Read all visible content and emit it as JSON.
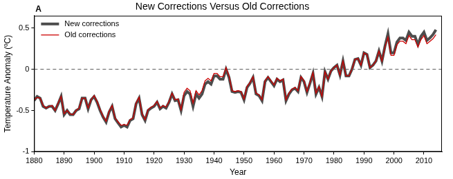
{
  "chart_data": {
    "type": "line",
    "title": "New Corrections Versus Old Corrections",
    "panel_label": "A",
    "x_label": "Year",
    "y_label": "Temperature Anomaly (ºC)",
    "xlim": [
      1880,
      2016
    ],
    "xticks": [
      1880,
      1890,
      1900,
      1910,
      1920,
      1930,
      1940,
      1950,
      1960,
      1970,
      1980,
      1990,
      2000,
      2010
    ],
    "ylim": [
      -1,
      0.65
    ],
    "yticks": [
      -1,
      -0.5,
      0,
      0.5
    ],
    "grid": false,
    "legend": "upper left",
    "x": [
      1880,
      1881,
      1882,
      1883,
      1884,
      1885,
      1886,
      1887,
      1888,
      1889,
      1890,
      1891,
      1892,
      1893,
      1894,
      1895,
      1896,
      1897,
      1898,
      1899,
      1900,
      1901,
      1902,
      1903,
      1904,
      1905,
      1906,
      1907,
      1908,
      1909,
      1910,
      1911,
      1912,
      1913,
      1914,
      1915,
      1916,
      1917,
      1918,
      1919,
      1920,
      1921,
      1922,
      1923,
      1924,
      1925,
      1926,
      1927,
      1928,
      1929,
      1930,
      1931,
      1932,
      1933,
      1934,
      1935,
      1936,
      1937,
      1938,
      1939,
      1940,
      1941,
      1942,
      1943,
      1944,
      1945,
      1946,
      1947,
      1948,
      1949,
      1950,
      1951,
      1952,
      1953,
      1954,
      1955,
      1956,
      1957,
      1958,
      1959,
      1960,
      1961,
      1962,
      1963,
      1964,
      1965,
      1966,
      1967,
      1968,
      1969,
      1970,
      1971,
      1972,
      1973,
      1974,
      1975,
      1976,
      1977,
      1978,
      1979,
      1980,
      1981,
      1982,
      1983,
      1984,
      1985,
      1986,
      1987,
      1988,
      1989,
      1990,
      1991,
      1992,
      1993,
      1994,
      1995,
      1996,
      1997,
      1998,
      1999,
      2000,
      2001,
      2002,
      2003,
      2004,
      2005,
      2006,
      2007,
      2008,
      2009,
      2010,
      2011,
      2012,
      2013,
      2014
    ],
    "series": [
      {
        "name": "New corrections",
        "color": "#4d4d4d",
        "line_style": "solid",
        "values": [
          -0.38,
          -0.33,
          -0.35,
          -0.45,
          -0.47,
          -0.45,
          -0.45,
          -0.5,
          -0.42,
          -0.33,
          -0.55,
          -0.5,
          -0.55,
          -0.55,
          -0.5,
          -0.48,
          -0.35,
          -0.35,
          -0.48,
          -0.37,
          -0.33,
          -0.4,
          -0.5,
          -0.58,
          -0.64,
          -0.52,
          -0.45,
          -0.6,
          -0.65,
          -0.7,
          -0.68,
          -0.7,
          -0.62,
          -0.6,
          -0.42,
          -0.35,
          -0.55,
          -0.62,
          -0.5,
          -0.47,
          -0.45,
          -0.4,
          -0.48,
          -0.45,
          -0.47,
          -0.4,
          -0.3,
          -0.38,
          -0.37,
          -0.5,
          -0.32,
          -0.27,
          -0.3,
          -0.45,
          -0.3,
          -0.35,
          -0.3,
          -0.18,
          -0.15,
          -0.18,
          -0.08,
          -0.08,
          -0.12,
          -0.12,
          0.0,
          -0.1,
          -0.27,
          -0.28,
          -0.27,
          -0.28,
          -0.37,
          -0.22,
          -0.17,
          -0.1,
          -0.3,
          -0.32,
          -0.38,
          -0.15,
          -0.1,
          -0.15,
          -0.2,
          -0.12,
          -0.15,
          -0.13,
          -0.38,
          -0.3,
          -0.25,
          -0.23,
          -0.27,
          -0.1,
          -0.15,
          -0.28,
          -0.17,
          -0.05,
          -0.3,
          -0.22,
          -0.33,
          -0.03,
          -0.12,
          -0.02,
          0.02,
          0.05,
          -0.07,
          0.1,
          -0.08,
          -0.08,
          0.0,
          0.12,
          0.13,
          0.05,
          0.2,
          0.18,
          0.02,
          0.05,
          0.1,
          0.22,
          0.1,
          0.28,
          0.43,
          0.2,
          0.2,
          0.33,
          0.38,
          0.38,
          0.35,
          0.45,
          0.4,
          0.4,
          0.3,
          0.4,
          0.45,
          0.35,
          0.38,
          0.42,
          0.48
        ]
      },
      {
        "name": "Old corrections",
        "color": "#cc0000",
        "line_style": "solid",
        "values": [
          -0.37,
          -0.34,
          -0.35,
          -0.44,
          -0.47,
          -0.45,
          -0.44,
          -0.5,
          -0.41,
          -0.33,
          -0.54,
          -0.5,
          -0.54,
          -0.55,
          -0.5,
          -0.47,
          -0.35,
          -0.35,
          -0.47,
          -0.37,
          -0.32,
          -0.39,
          -0.49,
          -0.57,
          -0.63,
          -0.51,
          -0.44,
          -0.59,
          -0.64,
          -0.68,
          -0.67,
          -0.68,
          -0.61,
          -0.59,
          -0.41,
          -0.34,
          -0.54,
          -0.61,
          -0.49,
          -0.46,
          -0.44,
          -0.39,
          -0.47,
          -0.44,
          -0.46,
          -0.39,
          -0.29,
          -0.37,
          -0.36,
          -0.49,
          -0.28,
          -0.23,
          -0.26,
          -0.41,
          -0.26,
          -0.31,
          -0.26,
          -0.14,
          -0.11,
          -0.14,
          -0.05,
          -0.05,
          -0.09,
          -0.09,
          0.02,
          -0.08,
          -0.26,
          -0.27,
          -0.26,
          -0.27,
          -0.36,
          -0.21,
          -0.16,
          -0.09,
          -0.29,
          -0.31,
          -0.37,
          -0.14,
          -0.09,
          -0.14,
          -0.19,
          -0.11,
          -0.14,
          -0.12,
          -0.37,
          -0.29,
          -0.24,
          -0.22,
          -0.26,
          -0.09,
          -0.14,
          -0.27,
          -0.16,
          -0.04,
          -0.29,
          -0.21,
          -0.33,
          -0.03,
          -0.12,
          -0.02,
          0.02,
          0.05,
          -0.07,
          0.1,
          -0.08,
          -0.08,
          0.0,
          0.12,
          0.13,
          0.05,
          0.2,
          0.18,
          0.02,
          0.05,
          0.1,
          0.22,
          0.1,
          0.27,
          0.39,
          0.17,
          0.17,
          0.3,
          0.34,
          0.34,
          0.31,
          0.41,
          0.36,
          0.36,
          0.27,
          0.36,
          0.41,
          0.31,
          0.34,
          0.37,
          0.42
        ]
      }
    ]
  }
}
